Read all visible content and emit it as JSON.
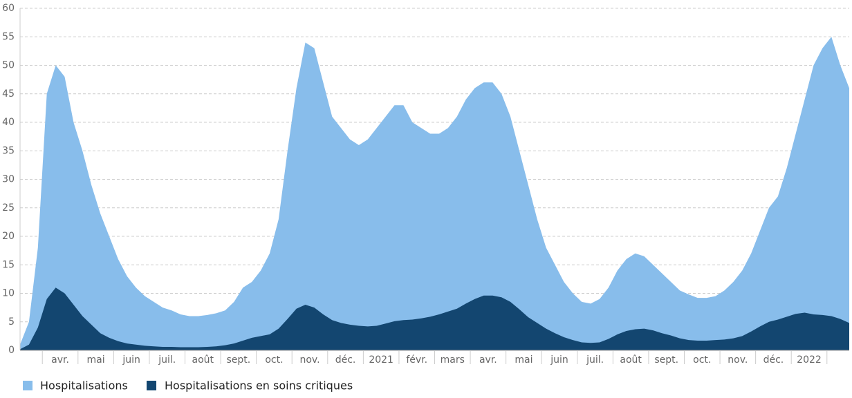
{
  "chart_data": {
    "type": "area",
    "categories": [
      null,
      null,
      null,
      null,
      "avr.",
      null,
      null,
      null,
      "mai",
      null,
      null,
      null,
      "juin",
      null,
      null,
      null,
      "juil.",
      null,
      null,
      null,
      "août",
      null,
      null,
      null,
      "sept.",
      null,
      null,
      null,
      "oct.",
      null,
      null,
      null,
      "nov.",
      null,
      null,
      null,
      "déc.",
      null,
      null,
      null,
      "2021",
      null,
      null,
      null,
      "févr.",
      null,
      null,
      null,
      "mars",
      null,
      null,
      null,
      "avr.",
      null,
      null,
      null,
      "mai",
      null,
      null,
      null,
      "juin",
      null,
      null,
      null,
      "juil.",
      null,
      null,
      null,
      "août",
      null,
      null,
      null,
      "sept.",
      null,
      null,
      null,
      "oct.",
      null,
      null,
      null,
      "nov.",
      null,
      null,
      null,
      "déc.",
      null,
      null,
      null,
      "2022",
      null,
      null,
      null,
      null,
      null
    ],
    "series": [
      {
        "name": "Hospitalisations",
        "color": "#88bdeb",
        "values": [
          1,
          5,
          18,
          45,
          50,
          48,
          40,
          35,
          29,
          24,
          20,
          16,
          13,
          11,
          9.5,
          8.5,
          7.5,
          7,
          6.3,
          6,
          6,
          6.2,
          6.5,
          7,
          8.5,
          11,
          12,
          14,
          17,
          23,
          35,
          46,
          54,
          53,
          47,
          41,
          39,
          37,
          36,
          37,
          39,
          41,
          43,
          43,
          40,
          39,
          38,
          38,
          39,
          41,
          44,
          46,
          47,
          47,
          45,
          41,
          35,
          29,
          23,
          18,
          15,
          12,
          10,
          8.5,
          8.2,
          9,
          11,
          14,
          16,
          17,
          16.5,
          15,
          13.5,
          12,
          10.5,
          9.8,
          9.2,
          9.2,
          9.5,
          10.5,
          12,
          14,
          17,
          21,
          25,
          27,
          32,
          38,
          44,
          50,
          53,
          55,
          50,
          46
        ]
      },
      {
        "name": "Hospitalisations en soins critiques",
        "color": "#134670",
        "values": [
          0.2,
          1,
          4,
          9,
          11,
          10,
          8,
          6,
          4.5,
          3,
          2.2,
          1.6,
          1.2,
          1,
          0.8,
          0.7,
          0.6,
          0.6,
          0.55,
          0.55,
          0.55,
          0.6,
          0.7,
          0.9,
          1.2,
          1.7,
          2.2,
          2.5,
          2.8,
          3.8,
          5.5,
          7.3,
          8,
          7.5,
          6.3,
          5.3,
          4.8,
          4.5,
          4.3,
          4.2,
          4.3,
          4.7,
          5.1,
          5.3,
          5.4,
          5.6,
          5.9,
          6.3,
          6.8,
          7.3,
          8.2,
          9,
          9.6,
          9.6,
          9.3,
          8.5,
          7.2,
          5.8,
          4.8,
          3.8,
          3,
          2.3,
          1.8,
          1.4,
          1.3,
          1.4,
          2,
          2.8,
          3.4,
          3.7,
          3.8,
          3.5,
          3,
          2.6,
          2.1,
          1.8,
          1.7,
          1.7,
          1.8,
          1.9,
          2.1,
          2.5,
          3.3,
          4.2,
          5,
          5.4,
          5.9,
          6.4,
          6.6,
          6.3,
          6.2,
          6,
          5.5,
          4.8
        ]
      }
    ],
    "ylim": [
      0,
      60
    ],
    "yticks": [
      0,
      5,
      10,
      15,
      20,
      25,
      30,
      35,
      40,
      45,
      50,
      55,
      60
    ],
    "grid": true
  }
}
